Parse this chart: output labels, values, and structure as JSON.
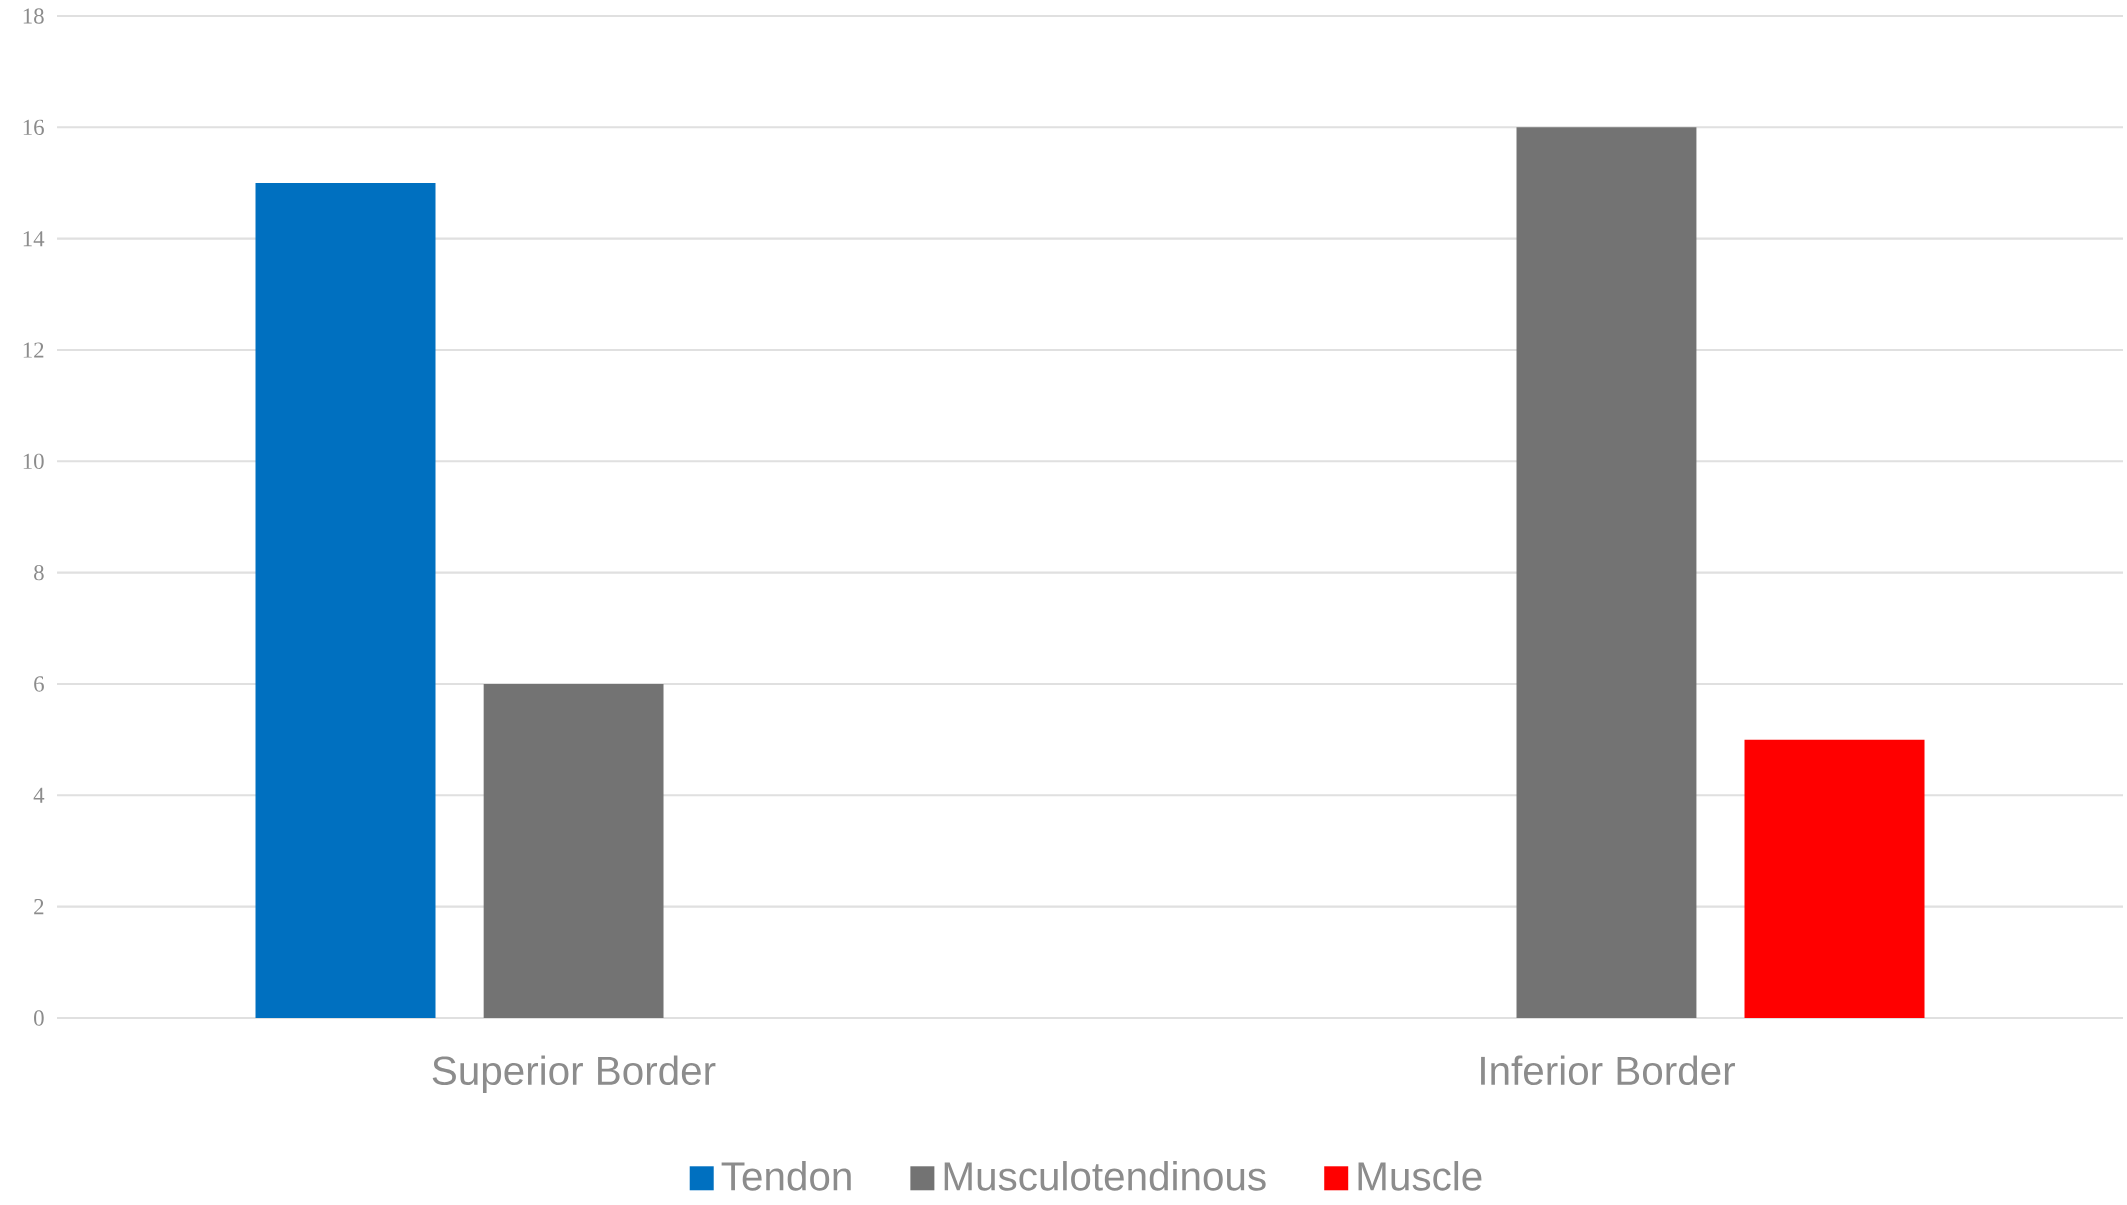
{
  "chart_data": {
    "type": "bar",
    "categories": [
      "Superior Border",
      "Inferior Border"
    ],
    "series": [
      {
        "name": "Tendon",
        "color": "#0070c0",
        "values": [
          15,
          0
        ]
      },
      {
        "name": "Musculotendinous",
        "color": "#737373",
        "values": [
          6,
          16
        ]
      },
      {
        "name": "Muscle",
        "color": "#ff0000",
        "values": [
          0,
          5
        ]
      }
    ],
    "ylim": [
      0,
      18
    ],
    "yticks": [
      0,
      2,
      4,
      6,
      8,
      10,
      12,
      14,
      16,
      18
    ],
    "grid": "y",
    "legend": "bottom"
  }
}
